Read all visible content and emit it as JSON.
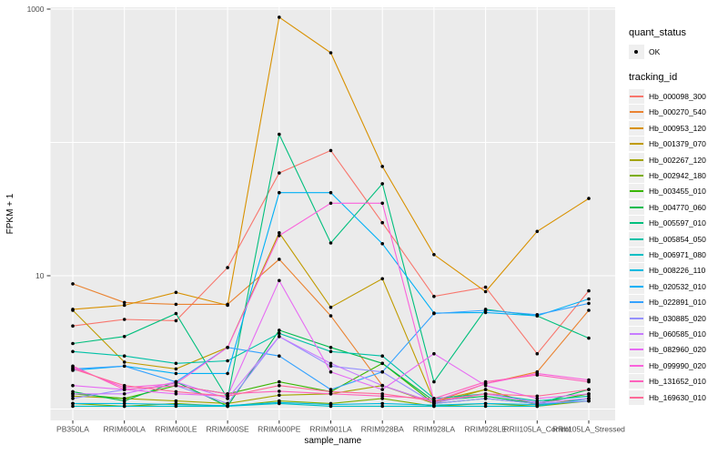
{
  "chart_data": {
    "type": "line",
    "title": "",
    "xlabel": "sample_name",
    "ylabel": "FPKM + 1",
    "y_scale": "log10",
    "y_tick_labels": [
      "1000",
      "10"
    ],
    "y_tick_values": [
      1000,
      10
    ],
    "y_gridline_values": [
      1,
      10,
      100,
      1000
    ],
    "ylim": [
      0.85,
      1500
    ],
    "grid": true,
    "panel_color": "#ebebeb",
    "gridline_color": "#ffffff",
    "point_color": "#000000",
    "categories": [
      "PB350LA",
      "RRIM600LA",
      "RRIM600LE",
      "RRIM600SE",
      "RRIM600PE",
      "RRIM901LA",
      "RRIM928BA",
      "RRIM928LA",
      "RRIM928LE",
      "RRII105LA_Control",
      "RRII105LA_Stressed"
    ],
    "series": [
      {
        "name": "Hb_000098_300",
        "color": "#F8766D",
        "values": [
          4.2,
          4.7,
          4.6,
          11.5,
          59,
          87,
          25,
          7.0,
          8.2,
          2.6,
          7.7
        ]
      },
      {
        "name": "Hb_000270_540",
        "color": "#EA8331",
        "values": [
          8.7,
          6.3,
          6.1,
          6.1,
          13.3,
          5.0,
          1.5,
          1.12,
          1.55,
          1.9,
          5.5
        ]
      },
      {
        "name": "Hb_000953_120",
        "color": "#D89100",
        "values": [
          5.6,
          6.0,
          7.5,
          6.0,
          870,
          470,
          66,
          14.4,
          7.6,
          21.5,
          38
        ]
      },
      {
        "name": "Hb_001379_070",
        "color": "#C09B00",
        "values": [
          5.5,
          2.25,
          2.0,
          2.9,
          21,
          5.8,
          9.5,
          1.15,
          1.4,
          1.07,
          1.2
        ]
      },
      {
        "name": "Hb_002267_120",
        "color": "#A3A500",
        "values": [
          1.25,
          1.2,
          1.15,
          1.1,
          1.27,
          1.3,
          1.5,
          1.1,
          1.4,
          1.07,
          1.2
        ]
      },
      {
        "name": "Hb_002942_180",
        "color": "#7CAE00",
        "values": [
          1.1,
          1.05,
          1.1,
          1.05,
          1.15,
          1.1,
          1.2,
          1.05,
          1.1,
          1.05,
          1.15
        ]
      },
      {
        "name": "Hb_003455_010",
        "color": "#39B600",
        "values": [
          1.3,
          1.2,
          1.5,
          1.3,
          1.6,
          1.35,
          2.2,
          1.1,
          1.2,
          1.1,
          1.3
        ]
      },
      {
        "name": "Hb_004770_060",
        "color": "#00BB4E",
        "values": [
          1.35,
          1.15,
          1.6,
          1.05,
          3.9,
          2.9,
          2.2,
          1.15,
          1.25,
          1.1,
          1.4
        ]
      },
      {
        "name": "Hb_005597_010",
        "color": "#00BF7D",
        "values": [
          3.1,
          3.5,
          5.2,
          1.2,
          115,
          17.6,
          49,
          1.6,
          5.6,
          5.0,
          3.4
        ]
      },
      {
        "name": "Hb_005854_050",
        "color": "#00C1A7",
        "values": [
          2.7,
          2.5,
          2.2,
          2.3,
          3.7,
          2.7,
          2.5,
          1.2,
          1.3,
          1.15,
          1.25
        ]
      },
      {
        "name": "Hb_006971_080",
        "color": "#00BFC4",
        "values": [
          1.05,
          1.05,
          1.05,
          1.05,
          1.1,
          1.05,
          1.05,
          1.05,
          1.05,
          1.05,
          1.2
        ]
      },
      {
        "name": "Hb_008226_110",
        "color": "#00BAE0",
        "values": [
          1.1,
          1.1,
          1.08,
          1.06,
          1.12,
          1.08,
          1.1,
          1.07,
          1.1,
          1.08,
          1.15
        ]
      },
      {
        "name": "Hb_020532_010",
        "color": "#00B0F6",
        "values": [
          1.95,
          2.1,
          1.85,
          1.85,
          42,
          42,
          17.4,
          5.25,
          5.3,
          5.0,
          6.7
        ]
      },
      {
        "name": "Hb_022891_010",
        "color": "#35A2FF",
        "values": [
          2.0,
          2.1,
          1.6,
          2.9,
          2.5,
          1.4,
          1.9,
          5.2,
          5.5,
          5.1,
          6.2
        ]
      },
      {
        "name": "Hb_030885_020",
        "color": "#9590FF",
        "values": [
          1.2,
          1.4,
          1.5,
          1.1,
          3.5,
          2.1,
          1.9,
          1.1,
          1.2,
          1.1,
          1.15
        ]
      },
      {
        "name": "Hb_060585_010",
        "color": "#C77CFF",
        "values": [
          1.3,
          1.3,
          1.6,
          1.2,
          3.5,
          2.2,
          1.5,
          1.12,
          1.3,
          1.12,
          1.2
        ]
      },
      {
        "name": "Hb_082960_020",
        "color": "#E76BF3",
        "values": [
          1.5,
          1.4,
          1.3,
          1.25,
          9.2,
          1.9,
          1.4,
          2.6,
          1.5,
          1.2,
          1.3
        ]
      },
      {
        "name": "Hb_099990_020",
        "color": "#FA62DB",
        "values": [
          2.05,
          1.45,
          1.55,
          2.9,
          20,
          35,
          35,
          1.15,
          1.55,
          1.85,
          1.65
        ]
      },
      {
        "name": "Hb_131652_010",
        "color": "#FF62BC",
        "values": [
          2.1,
          1.4,
          1.5,
          1.3,
          1.36,
          1.3,
          1.25,
          1.2,
          1.6,
          1.8,
          1.6
        ]
      },
      {
        "name": "Hb_169630_010",
        "color": "#FF6A98",
        "values": [
          2.0,
          1.5,
          1.35,
          1.25,
          1.5,
          1.35,
          1.3,
          1.15,
          1.3,
          1.25,
          1.4
        ]
      }
    ],
    "legend_position": "right"
  },
  "legend": {
    "quant_status": {
      "title": "quant_status",
      "items": [
        {
          "label": "OK",
          "marker": "point"
        }
      ]
    },
    "tracking_id": {
      "title": "tracking_id"
    }
  }
}
